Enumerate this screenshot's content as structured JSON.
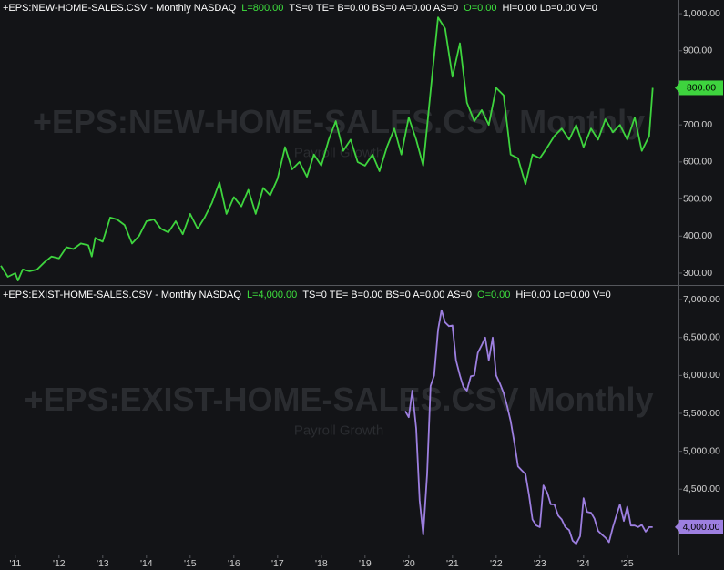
{
  "chart_data": [
    {
      "type": "line",
      "header": [
        {
          "text": "+EPS:NEW-HOME-SALES.CSV - Monthly  NASDAQ",
          "color": "#ffffff"
        },
        {
          "text": "L=800.00",
          "color": "#3ee03e"
        },
        {
          "text": "TS=0  TE=  B=0.00  BS=0  A=0.00  AS=0",
          "color": "#ffffff"
        },
        {
          "text": "O=0.00",
          "color": "#3ee03e"
        },
        {
          "text": "Hi=0.00  Lo=0.00  V=0",
          "color": "#ffffff"
        }
      ],
      "watermark": "+EPS:NEW-HOME-SALES.CSV Monthly",
      "watermark_subtitle": "Payroll Growth",
      "last_value_label": "800.00",
      "xlim": [
        2010.65,
        2026.17
      ],
      "ylim": [
        268,
        1037
      ],
      "yticks": [
        {
          "value": 300,
          "label": "300.00"
        },
        {
          "value": 400,
          "label": "400.00"
        },
        {
          "value": 500,
          "label": "500.00"
        },
        {
          "value": 600,
          "label": "600.00"
        },
        {
          "value": 700,
          "label": "700.00"
        },
        {
          "value": 800,
          "label": "800.00"
        },
        {
          "value": 900,
          "label": "900.00"
        },
        {
          "value": 1000,
          "label": "1,000.00"
        }
      ],
      "series": [
        {
          "color": "#3ed43e",
          "x": [
            2010.67,
            2010.83,
            2011.0,
            2011.06,
            2011.17,
            2011.33,
            2011.5,
            2011.67,
            2011.83,
            2012.0,
            2012.17,
            2012.33,
            2012.5,
            2012.67,
            2012.75,
            2012.83,
            2013.0,
            2013.17,
            2013.33,
            2013.5,
            2013.67,
            2013.83,
            2014.0,
            2014.17,
            2014.33,
            2014.5,
            2014.67,
            2014.83,
            2015.0,
            2015.17,
            2015.33,
            2015.5,
            2015.67,
            2015.83,
            2016.0,
            2016.17,
            2016.33,
            2016.5,
            2016.67,
            2016.83,
            2017.0,
            2017.17,
            2017.33,
            2017.5,
            2017.67,
            2017.83,
            2018.0,
            2018.17,
            2018.33,
            2018.5,
            2018.67,
            2018.83,
            2019.0,
            2019.17,
            2019.33,
            2019.5,
            2019.67,
            2019.83,
            2020.0,
            2020.17,
            2020.33,
            2020.5,
            2020.67,
            2020.83,
            2021.0,
            2021.17,
            2021.33,
            2021.5,
            2021.67,
            2021.83,
            2022.0,
            2022.17,
            2022.33,
            2022.5,
            2022.67,
            2022.83,
            2023.0,
            2023.17,
            2023.33,
            2023.5,
            2023.67,
            2023.83,
            2024.0,
            2024.17,
            2024.33,
            2024.5,
            2024.67,
            2024.83,
            2025.0,
            2025.17,
            2025.33,
            2025.5,
            2025.58
          ],
          "values": [
            320,
            290,
            300,
            280,
            310,
            305,
            310,
            330,
            345,
            340,
            370,
            365,
            380,
            375,
            345,
            395,
            385,
            450,
            445,
            430,
            380,
            400,
            440,
            445,
            420,
            410,
            440,
            405,
            460,
            420,
            450,
            490,
            545,
            460,
            505,
            480,
            525,
            460,
            530,
            510,
            555,
            640,
            580,
            600,
            560,
            620,
            590,
            660,
            710,
            630,
            660,
            600,
            590,
            620,
            575,
            640,
            690,
            620,
            720,
            660,
            590,
            790,
            990,
            960,
            830,
            920,
            760,
            710,
            740,
            700,
            800,
            780,
            620,
            610,
            540,
            620,
            610,
            640,
            670,
            690,
            660,
            700,
            640,
            690,
            660,
            715,
            680,
            700,
            660,
            720,
            630,
            670,
            800
          ]
        }
      ]
    },
    {
      "type": "line",
      "header": [
        {
          "text": "+EPS:EXIST-HOME-SALES.CSV - Monthly  NASDAQ",
          "color": "#ffffff"
        },
        {
          "text": "L=4,000.00",
          "color": "#3ee03e"
        },
        {
          "text": "TS=0  TE=  B=0.00  BS=0  A=0.00  AS=0",
          "color": "#ffffff"
        },
        {
          "text": "O=0.00",
          "color": "#3ee03e"
        },
        {
          "text": "Hi=0.00  Lo=0.00  V=0",
          "color": "#ffffff"
        }
      ],
      "watermark": "+EPS:EXIST-HOME-SALES.CSV Monthly",
      "watermark_subtitle": "Payroll Growth",
      "last_value_label": "4,000.00",
      "xlim": [
        2010.65,
        2026.17
      ],
      "xticks": [
        {
          "value": 2011,
          "label": "'11"
        },
        {
          "value": 2012,
          "label": "'12"
        },
        {
          "value": 2013,
          "label": "'13"
        },
        {
          "value": 2014,
          "label": "'14"
        },
        {
          "value": 2015,
          "label": "'15"
        },
        {
          "value": 2016,
          "label": "'16"
        },
        {
          "value": 2017,
          "label": "'17"
        },
        {
          "value": 2018,
          "label": "'18"
        },
        {
          "value": 2019,
          "label": "'19"
        },
        {
          "value": 2020,
          "label": "'20"
        },
        {
          "value": 2021,
          "label": "'21"
        },
        {
          "value": 2022,
          "label": "'22"
        },
        {
          "value": 2023,
          "label": "'23"
        },
        {
          "value": 2024,
          "label": "'24"
        },
        {
          "value": 2025,
          "label": "'25"
        }
      ],
      "ylim": [
        3650,
        7170
      ],
      "yticks": [
        {
          "value": 4000,
          "label": "4,000.00"
        },
        {
          "value": 4500,
          "label": "4,500.00"
        },
        {
          "value": 5000,
          "label": "5,000.00"
        },
        {
          "value": 5500,
          "label": "5,500.00"
        },
        {
          "value": 6000,
          "label": "6,000.00"
        },
        {
          "value": 6500,
          "label": "6,500.00"
        },
        {
          "value": 7000,
          "label": "7,000.00"
        }
      ],
      "series": [
        {
          "color": "#9d7fe0",
          "x": [
            2019.92,
            2020.0,
            2020.08,
            2020.17,
            2020.25,
            2020.33,
            2020.42,
            2020.5,
            2020.58,
            2020.67,
            2020.75,
            2020.83,
            2020.92,
            2021.0,
            2021.08,
            2021.17,
            2021.25,
            2021.33,
            2021.42,
            2021.5,
            2021.58,
            2021.67,
            2021.75,
            2021.83,
            2021.92,
            2022.0,
            2022.08,
            2022.17,
            2022.25,
            2022.33,
            2022.42,
            2022.5,
            2022.58,
            2022.67,
            2022.75,
            2022.83,
            2022.92,
            2023.0,
            2023.08,
            2023.17,
            2023.25,
            2023.33,
            2023.42,
            2023.5,
            2023.58,
            2023.67,
            2023.75,
            2023.83,
            2023.92,
            2024.0,
            2024.08,
            2024.17,
            2024.25,
            2024.33,
            2024.42,
            2024.5,
            2024.58,
            2024.67,
            2024.75,
            2024.83,
            2024.92,
            2025.0,
            2025.08,
            2025.17,
            2025.25,
            2025.33,
            2025.42,
            2025.5,
            2025.58
          ],
          "values": [
            5530,
            5450,
            5800,
            5300,
            4350,
            3900,
            4700,
            5860,
            6000,
            6600,
            6860,
            6700,
            6650,
            6660,
            6200,
            6000,
            5850,
            5800,
            5990,
            6000,
            6300,
            6400,
            6500,
            6200,
            6500,
            6000,
            5900,
            5770,
            5600,
            5400,
            5100,
            4800,
            4750,
            4700,
            4430,
            4100,
            4020,
            4000,
            4550,
            4450,
            4300,
            4300,
            4150,
            4100,
            4000,
            3960,
            3820,
            3780,
            3880,
            4380,
            4200,
            4190,
            4110,
            3950,
            3900,
            3860,
            3800,
            4000,
            4150,
            4300,
            4080,
            4270,
            4020,
            4020,
            4000,
            4030,
            3940,
            4000,
            4000
          ]
        }
      ]
    }
  ]
}
